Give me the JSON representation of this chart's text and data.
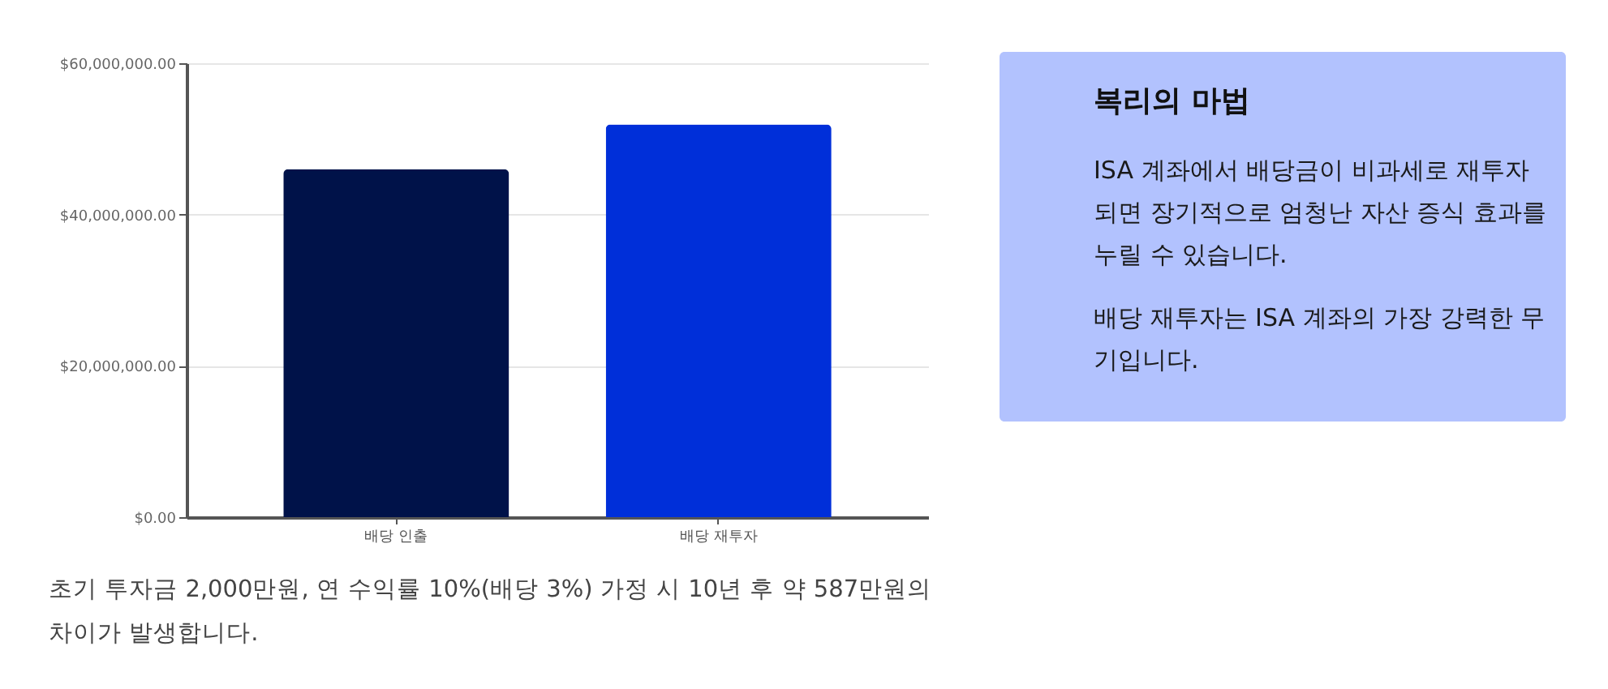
{
  "chart_data": [
    {
      "type": "bar",
      "categories": [
        "배당 인출",
        "배당 재투자"
      ],
      "values": [
        46000000,
        51900000
      ],
      "colors": [
        "#001249",
        "#002fd9"
      ],
      "ylim": [
        0,
        60000000
      ],
      "yticks": [
        {
          "value": 0,
          "label": "$0.00"
        },
        {
          "value": 20000000,
          "label": "$20,000,000.00"
        },
        {
          "value": 40000000,
          "label": "$40,000,000.00"
        },
        {
          "value": 60000000,
          "label": "$60,000,000.00"
        }
      ],
      "grid": "y",
      "annotations": [
        "초기 투자금 2,000만원, 연 수익률 10%(배당 3%) 가정 시 10년 후 약 587만원의 차이가 발생합니다."
      ]
    },
    {
      "type": "other",
      "title": "복리의 마법",
      "annotations": [
        "ISA 계좌에서 배당금이 비과세로 재투자되면 장기적으로 엄청난 자산 증식 효과를 누릴 수 있습니다.",
        "배당 재투자는 ISA 계좌의 가장 강력한 무기입니다."
      ]
    }
  ]
}
